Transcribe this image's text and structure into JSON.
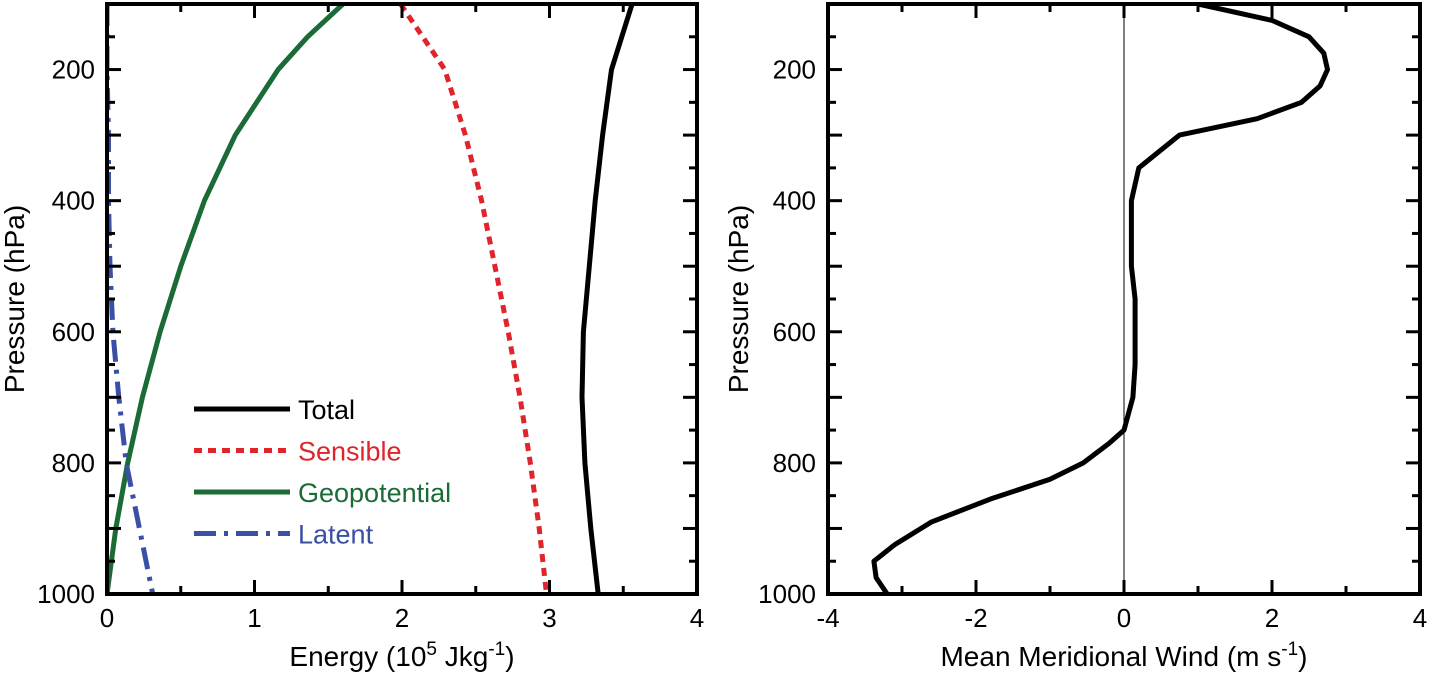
{
  "chart_data": [
    {
      "type": "line",
      "ylabel": "Pressure (hPa)",
      "xlabel": {
        "prefix": "Energy (10",
        "sup1": "5",
        "mid": " Jkg",
        "sup2": "-1",
        "suffix": ")"
      },
      "xlim": [
        0,
        4
      ],
      "ylim": [
        100,
        1000
      ],
      "y_inverted": true,
      "x_ticks": [
        "0",
        "1",
        "2",
        "3",
        "4"
      ],
      "x_tick_values": [
        0,
        1,
        2,
        3,
        4
      ],
      "y_ticks": [
        "200",
        "400",
        "600",
        "800",
        "1000"
      ],
      "y_tick_values": [
        200,
        400,
        600,
        800,
        1000
      ],
      "legend_position": "lower-center",
      "series": [
        {
          "name": "Total",
          "color": "#000000",
          "style": "solid",
          "x": [
            3.56,
            3.49,
            3.42,
            3.36,
            3.31,
            3.27,
            3.23,
            3.22,
            3.24,
            3.28,
            3.33
          ],
          "y": [
            100,
            150,
            200,
            300,
            400,
            500,
            600,
            700,
            800,
            900,
            1000
          ]
        },
        {
          "name": "Sensible",
          "color": "#e0242b",
          "style": "dashed",
          "x": [
            1.99,
            2.14,
            2.29,
            2.43,
            2.54,
            2.63,
            2.72,
            2.8,
            2.87,
            2.93,
            2.98
          ],
          "y": [
            100,
            150,
            200,
            300,
            400,
            500,
            600,
            700,
            800,
            900,
            1000
          ]
        },
        {
          "name": "Geopotential",
          "color": "#1a6b35",
          "style": "solid",
          "x": [
            1.6,
            1.36,
            1.16,
            0.87,
            0.66,
            0.5,
            0.36,
            0.24,
            0.14,
            0.06,
            0.0
          ],
          "y": [
            100,
            150,
            200,
            300,
            400,
            500,
            600,
            700,
            800,
            900,
            1000
          ]
        },
        {
          "name": "Latent",
          "color": "#3a4fa6",
          "style": "dashdot",
          "x": [
            0.0,
            0.0,
            0.0,
            0.01,
            0.01,
            0.02,
            0.04,
            0.08,
            0.13,
            0.22,
            0.31
          ],
          "y": [
            100,
            150,
            200,
            300,
            400,
            500,
            600,
            700,
            800,
            900,
            1000
          ]
        }
      ]
    },
    {
      "type": "line",
      "ylabel": "Pressure (hPa)",
      "xlabel": {
        "prefix": "Mean Meridional Wind (m s",
        "sup1": "-1",
        "suffix": ")"
      },
      "xlim": [
        -4,
        4
      ],
      "ylim": [
        100,
        1000
      ],
      "y_inverted": true,
      "x_ticks": [
        "-4",
        "-2",
        "0",
        "2",
        "4"
      ],
      "x_tick_values": [
        -4,
        -2,
        0,
        2,
        4
      ],
      "y_ticks": [
        "200",
        "400",
        "600",
        "800",
        "1000"
      ],
      "y_tick_values": [
        200,
        400,
        600,
        800,
        1000
      ],
      "zero_line": true,
      "series": [
        {
          "color": "#000000",
          "style": "solid",
          "x": [
            1.0,
            2.0,
            2.5,
            2.7,
            2.75,
            2.65,
            2.4,
            1.8,
            0.75,
            0.2,
            0.1,
            0.1,
            0.15,
            0.15,
            0.12,
            0.0,
            -0.2,
            -0.55,
            -1.0,
            -1.8,
            -2.6,
            -3.1,
            -3.38,
            -3.35,
            -3.2
          ],
          "y": [
            100,
            125,
            150,
            175,
            200,
            225,
            250,
            275,
            300,
            350,
            400,
            500,
            550,
            650,
            700,
            750,
            770,
            800,
            825,
            855,
            890,
            925,
            950,
            975,
            1000
          ]
        }
      ]
    }
  ],
  "legend": {
    "items": [
      {
        "label": "Total",
        "color": "#000000",
        "dash": ""
      },
      {
        "label": "Sensible",
        "color": "#e0242b",
        "dash": "8,6"
      },
      {
        "label": "Geopotential",
        "color": "#1a6b35",
        "dash": ""
      },
      {
        "label": "Latent",
        "color": "#3a4fa6",
        "dash": "22,8,4,8"
      }
    ]
  }
}
